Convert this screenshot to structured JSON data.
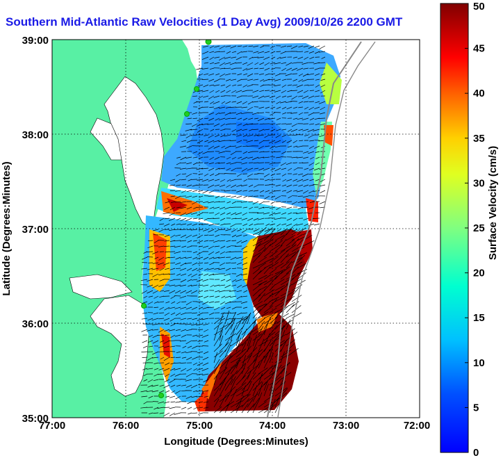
{
  "title": "Southern Mid-Atlantic Raw Velocities (1 Day Avg) 2009/10/26 2200 GMT",
  "x_axis": {
    "label": "Longitude (Degrees:Minutes)",
    "ticks": [
      "77:00",
      "76:00",
      "75:00",
      "74:00",
      "73:00",
      "72:00"
    ]
  },
  "y_axis": {
    "label": "Latitude (Degrees:Minutes)",
    "ticks": [
      "39:00",
      "38:00",
      "37:00",
      "36:00",
      "35:00"
    ]
  },
  "colorbar": {
    "label": "Surface Velocity (cm/s)",
    "ticks": [
      "0",
      "5",
      "10",
      "15",
      "20",
      "25",
      "30",
      "35",
      "40",
      "45",
      "50"
    ],
    "min": 0,
    "max": 50,
    "colormap": "jet"
  },
  "colors": {
    "land": "#58f0a4",
    "water": "#ffffff",
    "title": "#1a1ae6",
    "vectors": "#000000",
    "stations": "#22cc22"
  }
}
